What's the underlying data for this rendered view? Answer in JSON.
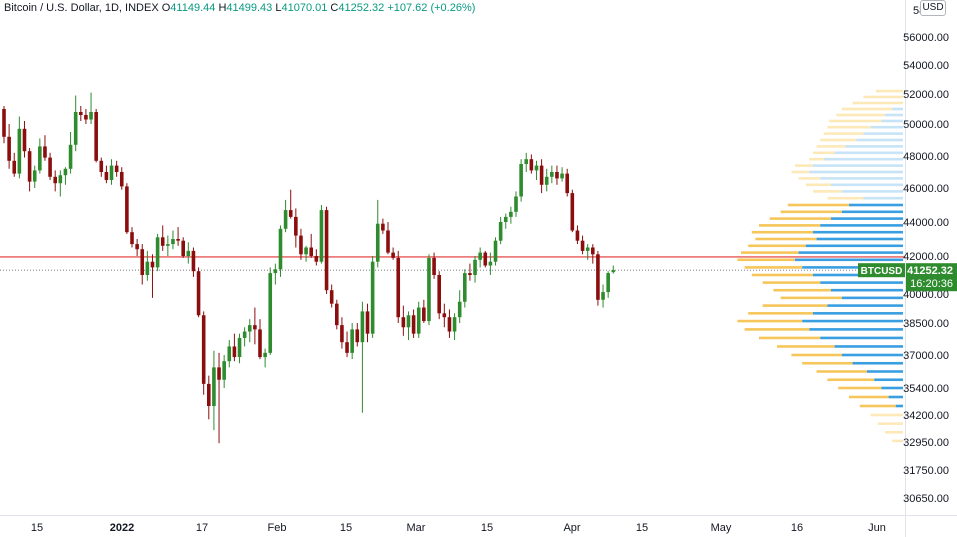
{
  "header": {
    "symbol": "Bitcoin / U.S. Dollar, 1D, INDEX",
    "open_label": "O",
    "open": "41149.44",
    "high_label": "H",
    "high": "41499.43",
    "low_label": "L",
    "low": "41070.01",
    "close_label": "C",
    "close": "41252.32",
    "change": "+107.62 (+0.26%)"
  },
  "currency_button": "USD",
  "price_badge": {
    "ticker": "BTCUSD",
    "price": "41252.32",
    "countdown": "16:20:36"
  },
  "colors": {
    "up": "#2e8b2e",
    "down": "#8b0e0e",
    "vp_up_in": "#3a9fe0",
    "vp_down_in": "#f6c65b",
    "vp_up_out": "#c7e3f7",
    "vp_down_out": "#fde8b8",
    "hline": "#e03030"
  },
  "chart_data": {
    "type": "candlestick",
    "y_axis_ticks": [
      "56000.00",
      "54000.00",
      "52000.00",
      "50000.00",
      "48000.00",
      "46000.00",
      "44000.00",
      "42000.00",
      "40000.00",
      "38500.00",
      "37000.00",
      "35400.00",
      "34200.00",
      "32950.00",
      "31750.00",
      "30650.00"
    ],
    "y_axis_top_partial": "58",
    "x_axis_ticks": [
      {
        "label": "15",
        "bold": false
      },
      {
        "label": "2022",
        "bold": true
      },
      {
        "label": "17",
        "bold": false
      },
      {
        "label": "Feb",
        "bold": false
      },
      {
        "label": "15",
        "bold": false
      },
      {
        "label": "Mar",
        "bold": false
      },
      {
        "label": "15",
        "bold": false
      },
      {
        "label": "Apr",
        "bold": false
      },
      {
        "label": "15",
        "bold": false
      },
      {
        "label": "May",
        "bold": false
      },
      {
        "label": "16",
        "bold": false
      },
      {
        "label": "Jun",
        "bold": false
      }
    ],
    "horizontal_line": 41950,
    "last_close": 41252.32,
    "candles": [
      [
        51000,
        51200,
        48800,
        49200
      ],
      [
        49200,
        50000,
        47200,
        47700
      ],
      [
        47700,
        48200,
        46700,
        46900
      ],
      [
        46900,
        50500,
        46600,
        49700
      ],
      [
        49700,
        50200,
        47900,
        48300
      ],
      [
        48300,
        48500,
        45800,
        46400
      ],
      [
        46400,
        47400,
        46000,
        47100
      ],
      [
        47100,
        49100,
        46900,
        48600
      ],
      [
        48600,
        49300,
        47700,
        47900
      ],
      [
        47900,
        48200,
        46500,
        46700
      ],
      [
        46700,
        47100,
        45800,
        46300
      ],
      [
        46300,
        47100,
        45500,
        46800
      ],
      [
        46800,
        47300,
        46200,
        47200
      ],
      [
        47200,
        49500,
        46900,
        48700
      ],
      [
        48700,
        51900,
        48300,
        50800
      ],
      [
        50800,
        51200,
        50200,
        50600
      ],
      [
        50600,
        51000,
        50000,
        50300
      ],
      [
        50300,
        52100,
        50000,
        50800
      ],
      [
        50800,
        51000,
        47600,
        47700
      ],
      [
        47700,
        47900,
        46700,
        47000
      ],
      [
        47000,
        47400,
        46300,
        46500
      ],
      [
        46500,
        47800,
        46200,
        47400
      ],
      [
        47400,
        47700,
        46700,
        47000
      ],
      [
        47000,
        47300,
        45900,
        46100
      ],
      [
        46100,
        46300,
        43300,
        43400
      ],
      [
        43400,
        43700,
        42500,
        42700
      ],
      [
        42700,
        43000,
        42000,
        42400
      ],
      [
        42400,
        42700,
        40500,
        41000
      ],
      [
        41000,
        42300,
        40700,
        41700
      ],
      [
        41700,
        42100,
        39800,
        41400
      ],
      [
        41400,
        43300,
        41200,
        43100
      ],
      [
        43100,
        43800,
        42300,
        42600
      ],
      [
        42600,
        43200,
        42000,
        42700
      ],
      [
        42700,
        43500,
        42400,
        43000
      ],
      [
        43000,
        43700,
        42600,
        42900
      ],
      [
        42900,
        43100,
        41900,
        42000
      ],
      [
        42000,
        42800,
        41600,
        42300
      ],
      [
        42300,
        42500,
        40900,
        41200
      ],
      [
        41200,
        41400,
        38800,
        38900
      ],
      [
        38900,
        39100,
        35100,
        35600
      ],
      [
        35600,
        36000,
        34000,
        34600
      ],
      [
        34600,
        37200,
        33500,
        36400
      ],
      [
        36400,
        37100,
        32900,
        35800
      ],
      [
        35800,
        37000,
        35400,
        36700
      ],
      [
        36700,
        37700,
        36400,
        37400
      ],
      [
        37400,
        38000,
        36700,
        36900
      ],
      [
        36900,
        38000,
        36600,
        37800
      ],
      [
        37800,
        38300,
        37400,
        38100
      ],
      [
        38100,
        38700,
        37600,
        38400
      ],
      [
        38400,
        39300,
        37500,
        38200
      ],
      [
        38200,
        38700,
        36800,
        36900
      ],
      [
        36900,
        37300,
        36400,
        37100
      ],
      [
        37100,
        41400,
        37000,
        41100
      ],
      [
        41100,
        41600,
        40500,
        41300
      ],
      [
        41300,
        43800,
        40900,
        43600
      ],
      [
        43600,
        45300,
        43400,
        44700
      ],
      [
        44700,
        45900,
        44200,
        44300
      ],
      [
        44300,
        44800,
        42500,
        43200
      ],
      [
        43200,
        43600,
        41800,
        42100
      ],
      [
        42100,
        42600,
        41700,
        42500
      ],
      [
        42500,
        43300,
        41900,
        42000
      ],
      [
        42000,
        42400,
        41500,
        41700
      ],
      [
        41700,
        45000,
        41600,
        44700
      ],
      [
        44700,
        44900,
        40000,
        40200
      ],
      [
        40200,
        40500,
        39300,
        39500
      ],
      [
        39500,
        39700,
        38200,
        38400
      ],
      [
        38400,
        38800,
        37300,
        37600
      ],
      [
        37600,
        38100,
        36900,
        37100
      ],
      [
        37100,
        38500,
        36800,
        38200
      ],
      [
        38200,
        38500,
        37400,
        37600
      ],
      [
        37600,
        39600,
        34300,
        39100
      ],
      [
        39100,
        39500,
        37600,
        38000
      ],
      [
        38000,
        42000,
        37800,
        41700
      ],
      [
        41700,
        45300,
        41400,
        43900
      ],
      [
        43900,
        44200,
        43300,
        43500
      ],
      [
        43500,
        44000,
        42100,
        42200
      ],
      [
        42200,
        42500,
        41800,
        41900
      ],
      [
        41900,
        42300,
        38500,
        38800
      ],
      [
        38800,
        39400,
        37900,
        38300
      ],
      [
        38300,
        39100,
        37700,
        38900
      ],
      [
        38900,
        39200,
        37800,
        38000
      ],
      [
        38000,
        39600,
        37800,
        39300
      ],
      [
        39300,
        39700,
        38500,
        38600
      ],
      [
        38600,
        42100,
        38400,
        41900
      ],
      [
        41900,
        42200,
        40800,
        41000
      ],
      [
        41000,
        41200,
        38700,
        39000
      ],
      [
        39000,
        39500,
        38300,
        38800
      ],
      [
        38800,
        39200,
        37800,
        38100
      ],
      [
        38100,
        39000,
        37700,
        38800
      ],
      [
        38800,
        40200,
        38500,
        39600
      ],
      [
        39600,
        41300,
        39300,
        41100
      ],
      [
        41100,
        41600,
        40700,
        41000
      ],
      [
        41000,
        42000,
        40600,
        41800
      ],
      [
        41800,
        42500,
        41400,
        42200
      ],
      [
        42200,
        42300,
        41400,
        41500
      ],
      [
        41500,
        42200,
        41000,
        41700
      ],
      [
        41700,
        43100,
        41500,
        42900
      ],
      [
        42900,
        44300,
        42700,
        44000
      ],
      [
        44000,
        44500,
        43600,
        44300
      ],
      [
        44300,
        44900,
        43900,
        44600
      ],
      [
        44600,
        45800,
        44300,
        45500
      ],
      [
        45500,
        47800,
        45200,
        47500
      ],
      [
        47500,
        48200,
        47000,
        47800
      ],
      [
        47800,
        48100,
        46900,
        47100
      ],
      [
        47100,
        47700,
        46500,
        47400
      ],
      [
        47400,
        47800,
        45700,
        46200
      ],
      [
        46200,
        47200,
        45800,
        46700
      ],
      [
        46700,
        47400,
        46300,
        47000
      ],
      [
        47000,
        47400,
        46200,
        46600
      ],
      [
        46600,
        47300,
        46400,
        46900
      ],
      [
        46900,
        47200,
        45500,
        45700
      ],
      [
        45700,
        45900,
        43400,
        43500
      ],
      [
        43500,
        43800,
        42700,
        42900
      ],
      [
        42900,
        43200,
        42100,
        42300
      ],
      [
        42300,
        42700,
        41800,
        42500
      ],
      [
        42500,
        42700,
        41600,
        42100
      ],
      [
        42100,
        42300,
        39400,
        39700
      ],
      [
        39700,
        40500,
        39300,
        40100
      ],
      [
        40100,
        41200,
        39800,
        41100
      ],
      [
        41149.44,
        41499.43,
        41070.01,
        41252.32
      ]
    ],
    "volume_profile": [
      [
        52200,
        0,
        0.15
      ],
      [
        51800,
        0,
        0.22
      ],
      [
        51400,
        0,
        0.28
      ],
      [
        51000,
        0.06,
        0.34
      ],
      [
        50600,
        0.1,
        0.37
      ],
      [
        50200,
        0.12,
        0.41
      ],
      [
        49800,
        0.18,
        0.42
      ],
      [
        49400,
        0.22,
        0.44
      ],
      [
        49000,
        0.26,
        0.46
      ],
      [
        48600,
        0.32,
        0.48
      ],
      [
        48200,
        0.38,
        0.5
      ],
      [
        47800,
        0.44,
        0.52
      ],
      [
        47400,
        0.5,
        0.6
      ],
      [
        47000,
        0.52,
        0.62
      ],
      [
        46600,
        0.46,
        0.58
      ],
      [
        46200,
        0.4,
        0.54
      ],
      [
        45800,
        0.34,
        0.5
      ],
      [
        45400,
        0.22,
        0.42
      ],
      [
        45000,
        0.3,
        0.64
      ],
      [
        44600,
        0.34,
        0.68
      ],
      [
        44200,
        0.4,
        0.74
      ],
      [
        43800,
        0.46,
        0.8
      ],
      [
        43400,
        0.5,
        0.84
      ],
      [
        43000,
        0.48,
        0.82
      ],
      [
        42600,
        0.54,
        0.86
      ],
      [
        42200,
        0.58,
        0.9
      ],
      [
        41800,
        0.6,
        0.92
      ],
      [
        41400,
        0.56,
        0.88
      ],
      [
        41000,
        0.5,
        0.84
      ],
      [
        40600,
        0.46,
        0.78
      ],
      [
        40200,
        0.4,
        0.72
      ],
      [
        39800,
        0.34,
        0.68
      ],
      [
        39400,
        0.42,
        0.78
      ],
      [
        39000,
        0.5,
        0.86
      ],
      [
        38600,
        0.56,
        0.92
      ],
      [
        38200,
        0.52,
        0.88
      ],
      [
        37800,
        0.46,
        0.8
      ],
      [
        37400,
        0.38,
        0.7
      ],
      [
        37000,
        0.34,
        0.62
      ],
      [
        36600,
        0.28,
        0.56
      ],
      [
        36200,
        0.2,
        0.48
      ],
      [
        35800,
        0.16,
        0.42
      ],
      [
        35400,
        0.12,
        0.36
      ],
      [
        35000,
        0.08,
        0.3
      ],
      [
        34600,
        0.04,
        0.24
      ],
      [
        34200,
        0,
        0.18
      ],
      [
        33800,
        0,
        0.14
      ],
      [
        33400,
        0,
        0.1
      ],
      [
        33000,
        0,
        0.06
      ]
    ]
  },
  "x_axis_scroll": ""
}
